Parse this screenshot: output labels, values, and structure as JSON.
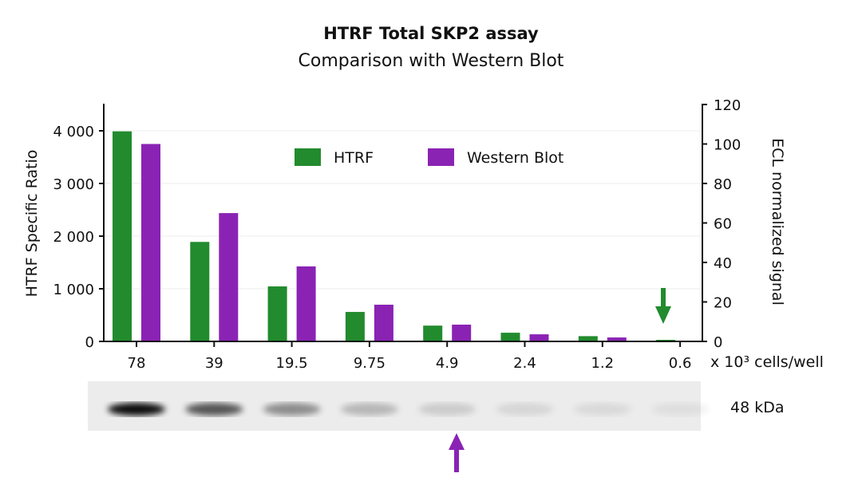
{
  "chart_data": {
    "type": "bar",
    "title": "HTRF Total SKP2 assay",
    "subtitle": "Comparison with Western Blot",
    "categories": [
      "78",
      "39",
      "19.5",
      "9.75",
      "4.9",
      "2.4",
      "1.2",
      "0.6"
    ],
    "xlabel": "x 10³ cells/well",
    "ylabel": "HTRF Specific Ratio",
    "y2label": "ECL normalized signal",
    "ylim": [
      0,
      4500
    ],
    "y2lim": [
      0,
      120
    ],
    "yticks": [
      "0",
      "1 000",
      "2 000",
      "3 000",
      "4 000"
    ],
    "y2ticks": [
      "0",
      "20",
      "40",
      "60",
      "80",
      "100",
      "120"
    ],
    "grid": true,
    "legend": "top-center",
    "series": [
      {
        "name": "HTRF",
        "axis": "left",
        "color": "#228B2E",
        "values": [
          3990,
          1890,
          1045,
          560,
          300,
          165,
          100,
          30
        ]
      },
      {
        "name": "Western Blot",
        "axis": "right",
        "color": "#8A23B4",
        "values": [
          100,
          65,
          38,
          18.6,
          8.5,
          3.6,
          2,
          0
        ]
      }
    ],
    "annotations": {
      "blot_label": "48 kDa",
      "htrf_detection_limit_arrow": "0.6",
      "wb_detection_limit_arrow": "4.9"
    }
  }
}
